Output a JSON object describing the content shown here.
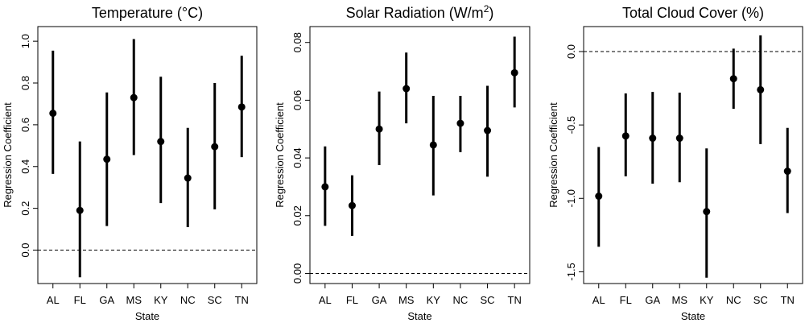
{
  "chart_data": [
    {
      "type": "errorbar",
      "title": "Temperature (°C)",
      "xlabel": "State",
      "ylabel": "Regression Coefficient",
      "categories": [
        "AL",
        "FL",
        "GA",
        "MS",
        "KY",
        "NC",
        "SC",
        "TN"
      ],
      "values": [
        0.655,
        0.19,
        0.435,
        0.73,
        0.52,
        0.345,
        0.495,
        0.685
      ],
      "lower": [
        0.365,
        -0.13,
        0.115,
        0.455,
        0.225,
        0.11,
        0.195,
        0.445
      ],
      "upper": [
        0.955,
        0.52,
        0.755,
        1.01,
        0.83,
        0.585,
        0.8,
        0.93
      ],
      "yticks": [
        0.0,
        0.2,
        0.4,
        0.6,
        0.8,
        1.0
      ],
      "ytick_labels": [
        "0.0",
        "0.2",
        "0.4",
        "0.6",
        "0.8",
        "1.0"
      ],
      "ylim": [
        -0.16,
        1.07
      ],
      "reference_line": 0
    },
    {
      "type": "errorbar",
      "title": "Solar Radiation (W/m",
      "title_sup": "2",
      "title_end": ")",
      "xlabel": "State",
      "ylabel": "Regression Coefficient",
      "categories": [
        "AL",
        "FL",
        "GA",
        "MS",
        "KY",
        "NC",
        "SC",
        "TN"
      ],
      "values": [
        0.03,
        0.0235,
        0.05,
        0.064,
        0.0445,
        0.052,
        0.0495,
        0.0695
      ],
      "lower": [
        0.0165,
        0.013,
        0.0375,
        0.052,
        0.027,
        0.042,
        0.0335,
        0.0575
      ],
      "upper": [
        0.044,
        0.034,
        0.063,
        0.0765,
        0.0615,
        0.0615,
        0.065,
        0.082
      ],
      "yticks": [
        0.0,
        0.02,
        0.04,
        0.06,
        0.08
      ],
      "ytick_labels": [
        "0.00",
        "0.02",
        "0.04",
        "0.06",
        "0.08"
      ],
      "ylim": [
        -0.0035,
        0.0855
      ],
      "reference_line": 0
    },
    {
      "type": "errorbar",
      "title": "Total Cloud Cover (%)",
      "xlabel": "State",
      "ylabel": "Regression Coefficient",
      "categories": [
        "AL",
        "FL",
        "GA",
        "MS",
        "KY",
        "NC",
        "SC",
        "TN"
      ],
      "values": [
        -0.985,
        -0.575,
        -0.59,
        -0.59,
        -1.09,
        -0.185,
        -0.26,
        -0.815
      ],
      "lower": [
        -1.33,
        -0.85,
        -0.9,
        -0.89,
        -1.54,
        -0.39,
        -0.63,
        -1.1
      ],
      "upper": [
        -0.65,
        -0.285,
        -0.275,
        -0.28,
        -0.66,
        0.02,
        0.11,
        -0.52
      ],
      "yticks": [
        -1.5,
        -1.0,
        -0.5,
        0.0
      ],
      "ytick_labels": [
        "-1.5",
        "-1.0",
        "-0.5",
        "0.0"
      ],
      "ylim": [
        -1.58,
        0.17
      ],
      "reference_line": 0
    }
  ]
}
